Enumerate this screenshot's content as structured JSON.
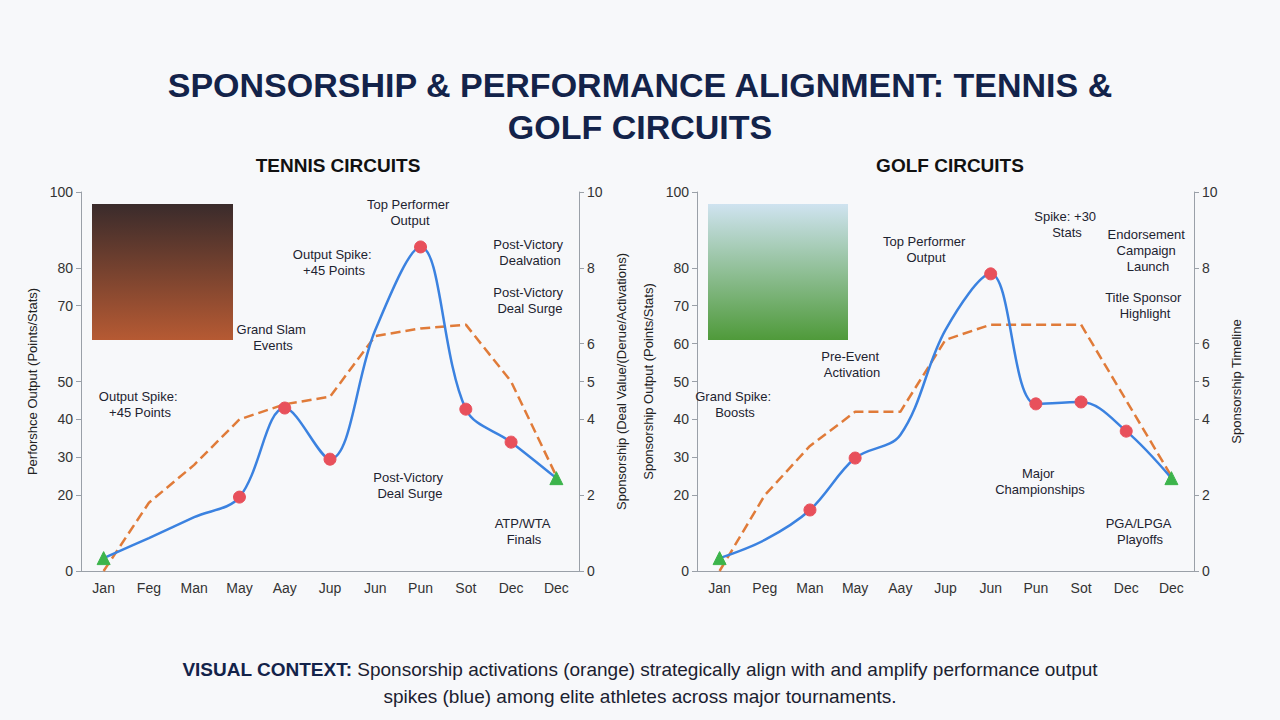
{
  "title": "SPONSORSHIP & PERFORMANCE ALIGNMENT: TENNIS & GOLF CIRCUITS",
  "caption": {
    "label": "VISUAL CONTEXT:",
    "text": "Sponsorship activations (orange) strategically align with and amplify performance output spikes (blue) among elite athletes across major tournaments."
  },
  "chart_data": [
    {
      "type": "line",
      "title": "TENNIS CIRCUITS",
      "categories": [
        "Jan",
        "Feg",
        "Man",
        "May",
        "Aay",
        "Jup",
        "Jun",
        "Pun",
        "Sot",
        "Dec",
        "Dec"
      ],
      "ylabel": "Perforshce Output (Points/Stats)",
      "y2label": "Sponsorship (Deal Value/(Derue/Activations)",
      "ylim": [
        0,
        100
      ],
      "yticks": [
        0,
        20,
        30,
        40,
        50,
        70,
        80,
        100
      ],
      "y2lim": [
        0,
        10
      ],
      "y2ticks": [
        0,
        2,
        4,
        5,
        6,
        8,
        10
      ],
      "grid": false,
      "series": [
        {
          "type": "line",
          "color": "#3b82e0",
          "line_style": "solid",
          "marker": "circle",
          "values": [
            3.4,
            8.7,
            14.2,
            19.5,
            43,
            29.5,
            63.6,
            85.5,
            42.7,
            34,
            24.5
          ],
          "colors": [
            "#3cb44b",
            null,
            null,
            "#e8505b",
            "#e8505b",
            "#e8505b",
            null,
            "#e8505b",
            "#e8505b",
            "#e8505b",
            "#3cb44b"
          ]
        },
        {
          "type": "line",
          "color": "#e07b39",
          "line_style": "dashed",
          "marker": "none",
          "axis": "y2",
          "values": [
            0,
            1.8,
            2.8,
            4,
            4.4,
            4.6,
            6.2,
            6.4,
            6.5,
            5,
            2.5
          ]
        }
      ],
      "annotations": [
        "Top Performer Output",
        "Output Spike: +45 Points",
        "Post-Victory Dealvation",
        "Post-Victory Deal Surge",
        "Grand Slam Events",
        "Output Spike: +45 Points",
        "Post-Victory Deal Surge",
        "ATP/WTA Finals"
      ]
    },
    {
      "type": "line",
      "title": "GOLF CIRCUITS",
      "categories": [
        "Jan",
        "Peg",
        "Man",
        "May",
        "Aay",
        "Jup",
        "Jun",
        "Pun",
        "Sot",
        "Dec",
        "Dec"
      ],
      "ylabel": "Sponsorship Output (Points/Stats)",
      "y2label": "Sponsorship Timeline",
      "ylim": [
        0,
        100
      ],
      "yticks": [
        0,
        20,
        30,
        40,
        50,
        60,
        70,
        80,
        100
      ],
      "y2lim": [
        0,
        10
      ],
      "y2ticks": [
        0,
        2,
        4,
        5,
        6,
        8,
        10
      ],
      "grid": false,
      "series": [
        {
          "type": "line",
          "color": "#3b82e0",
          "line_style": "solid",
          "marker": "circle",
          "values": [
            3.4,
            8.2,
            16.1,
            29.8,
            35.9,
            63.6,
            78.4,
            44.1,
            44.6,
            36.9,
            24.5
          ],
          "colors": [
            "#3cb44b",
            null,
            "#e8505b",
            "#e8505b",
            null,
            null,
            "#e8505b",
            "#e8505b",
            "#e8505b",
            "#e8505b",
            "#3cb44b"
          ]
        },
        {
          "type": "line",
          "color": "#e07b39",
          "line_style": "dashed",
          "marker": "none",
          "axis": "y2",
          "values": [
            0,
            2,
            3.3,
            4.2,
            4.2,
            6.1,
            6.5,
            6.5,
            6.5,
            4.5,
            2.5
          ]
        }
      ],
      "annotations": [
        "Top Performer Output",
        "Spike: +30 Stats",
        "Endorsement Campaign Launch",
        "Title Sponsor Highlight",
        "Pre-Event Activation",
        "Grand Spike: Boosts",
        "Major Championships",
        "PGA/LPGA Playoffs"
      ]
    }
  ]
}
